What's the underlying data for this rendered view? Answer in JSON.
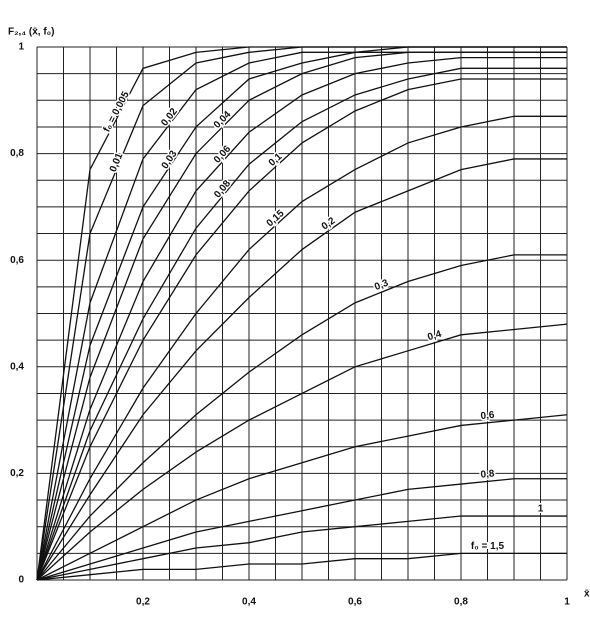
{
  "chart_data": {
    "type": "line",
    "y_label": "F₂,₄ (x̄, f₀)",
    "x_label": "x̄",
    "x": [
      0,
      0.1,
      0.2,
      0.3,
      0.4,
      0.5,
      0.6,
      0.7,
      0.8,
      0.9,
      1
    ],
    "xlim": [
      0,
      1
    ],
    "ylim": [
      0,
      1
    ],
    "xticks": [
      {
        "value": 0.2,
        "label": "0,2"
      },
      {
        "value": 0.4,
        "label": "0,4"
      },
      {
        "value": 0.6,
        "label": "0,6"
      },
      {
        "value": 0.8,
        "label": "0,8"
      },
      1
    ],
    "yticks": [
      0,
      {
        "value": 0.2,
        "label": "0,2"
      },
      {
        "value": 0.4,
        "label": "0,4"
      },
      {
        "value": 0.6,
        "label": "0,6"
      },
      {
        "value": 0.8,
        "label": "0,8"
      },
      1
    ],
    "grid": true,
    "grid_step": 0.05,
    "color": "#111111",
    "series": [
      {
        "name": "f₀ = 0,005",
        "values": [
          0,
          0.77,
          0.96,
          0.99,
          1,
          1,
          1,
          1,
          1,
          1,
          1
        ]
      },
      {
        "name": "0,01",
        "values": [
          0,
          0.65,
          0.89,
          0.97,
          0.99,
          1,
          1,
          1,
          1,
          1,
          1
        ]
      },
      {
        "name": "0,02",
        "values": [
          0,
          0.52,
          0.79,
          0.92,
          0.97,
          0.99,
          0.99,
          1,
          1,
          1,
          1
        ]
      },
      {
        "name": "0,03",
        "values": [
          0,
          0.44,
          0.7,
          0.85,
          0.94,
          0.97,
          0.99,
          0.99,
          0.99,
          0.99,
          0.99
        ]
      },
      {
        "name": "0,04",
        "values": [
          0,
          0.38,
          0.64,
          0.8,
          0.9,
          0.95,
          0.98,
          0.99,
          0.99,
          0.99,
          0.99
        ]
      },
      {
        "name": "0,06",
        "values": [
          0,
          0.32,
          0.56,
          0.73,
          0.84,
          0.91,
          0.95,
          0.97,
          0.98,
          0.98,
          0.98
        ]
      },
      {
        "name": "0,08",
        "values": [
          0,
          0.28,
          0.49,
          0.66,
          0.78,
          0.86,
          0.91,
          0.94,
          0.96,
          0.96,
          0.96
        ]
      },
      {
        "name": "0,1",
        "values": [
          0,
          0.25,
          0.45,
          0.61,
          0.73,
          0.82,
          0.88,
          0.92,
          0.94,
          0.94,
          0.94
        ]
      },
      {
        "name": "0,15",
        "values": [
          0,
          0.19,
          0.36,
          0.5,
          0.62,
          0.71,
          0.77,
          0.82,
          0.85,
          0.87,
          0.87
        ]
      },
      {
        "name": "0,2",
        "values": [
          0,
          0.16,
          0.31,
          0.43,
          0.53,
          0.62,
          0.69,
          0.73,
          0.77,
          0.79,
          0.79
        ]
      },
      {
        "name": "0,3",
        "values": [
          0,
          0.12,
          0.22,
          0.31,
          0.39,
          0.46,
          0.52,
          0.56,
          0.59,
          0.61,
          0.61
        ]
      },
      {
        "name": "0,4",
        "values": [
          0,
          0.09,
          0.17,
          0.24,
          0.3,
          0.35,
          0.4,
          0.43,
          0.46,
          0.47,
          0.48
        ]
      },
      {
        "name": "0,6",
        "values": [
          0,
          0.05,
          0.1,
          0.15,
          0.19,
          0.22,
          0.25,
          0.27,
          0.29,
          0.3,
          0.31
        ]
      },
      {
        "name": "0,8",
        "values": [
          0,
          0.03,
          0.06,
          0.09,
          0.11,
          0.13,
          0.15,
          0.17,
          0.18,
          0.19,
          0.19
        ]
      },
      {
        "name": "1",
        "values": [
          0,
          0.02,
          0.04,
          0.06,
          0.07,
          0.09,
          0.1,
          0.11,
          0.12,
          0.12,
          0.12
        ]
      },
      {
        "name": "f₀ = 1,5",
        "values": [
          0,
          0.01,
          0.02,
          0.02,
          0.03,
          0.03,
          0.04,
          0.04,
          0.05,
          0.05,
          0.05
        ]
      }
    ]
  }
}
